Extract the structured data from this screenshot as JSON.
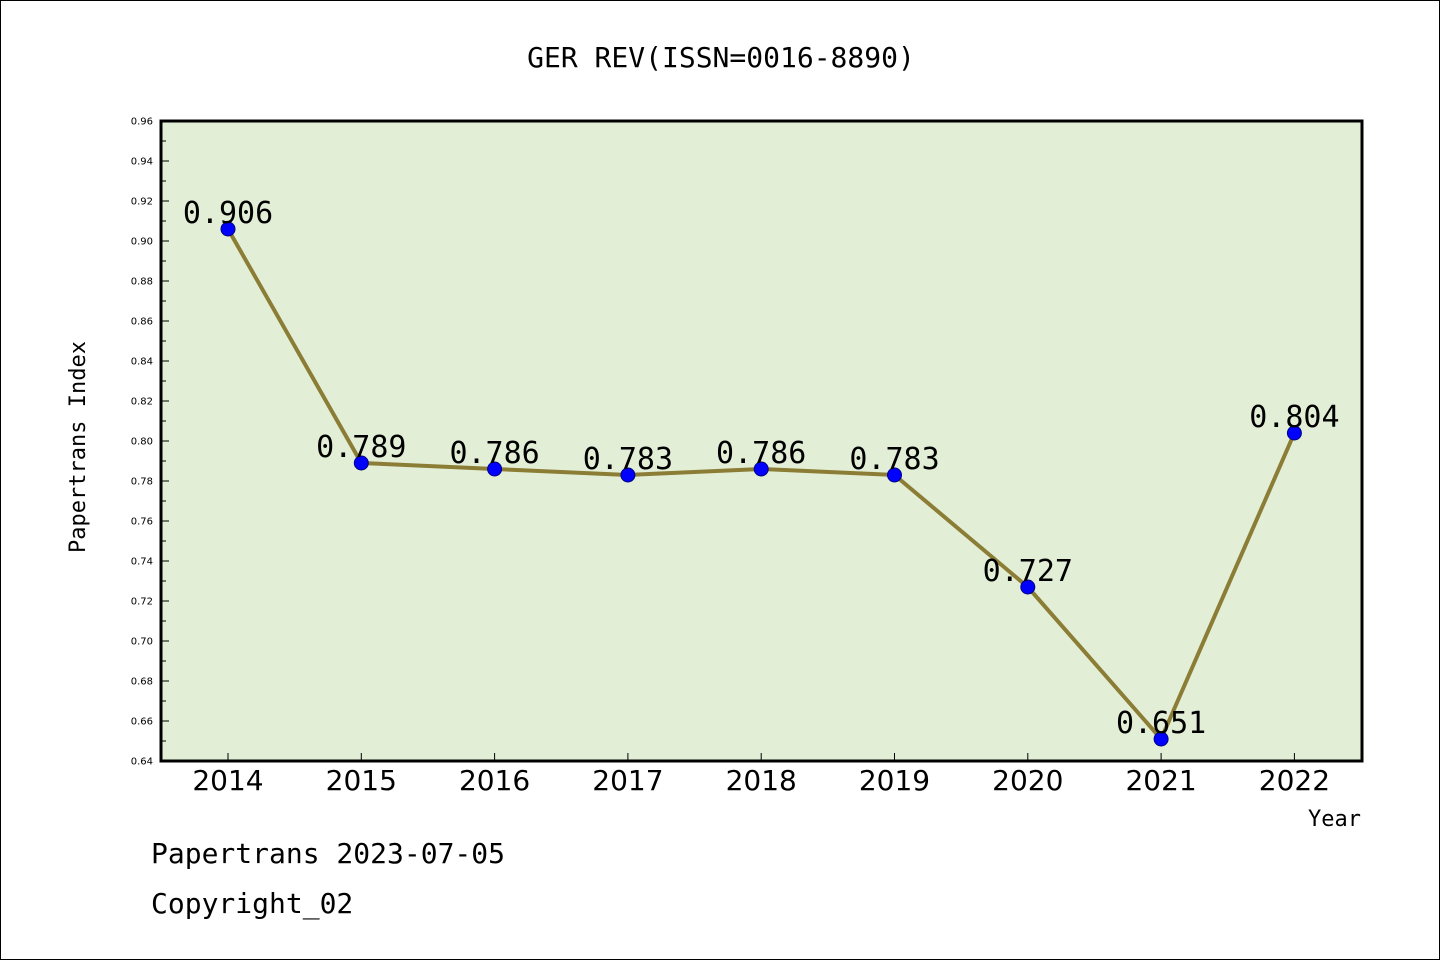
{
  "chart_data": {
    "type": "line",
    "title": "GER REV(ISSN=0016-8890)",
    "xlabel": "Year",
    "ylabel": "Papertrans Index",
    "categories": [
      "2014",
      "2015",
      "2016",
      "2017",
      "2018",
      "2019",
      "2020",
      "2021",
      "2022"
    ],
    "series": [
      {
        "values": [
          0.906,
          0.789,
          0.786,
          0.783,
          0.786,
          0.783,
          0.727,
          0.651,
          0.804
        ],
        "data_labels": [
          "0.906",
          "0.789",
          "0.786",
          "0.783",
          "0.786",
          "0.783",
          "0.727",
          "0.651",
          "0.804"
        ]
      }
    ],
    "ylim": [
      0.64,
      0.96
    ],
    "yticks": [
      "0.64",
      "0.66",
      "0.68",
      "0.70",
      "0.72",
      "0.74",
      "0.76",
      "0.78",
      "0.80",
      "0.82",
      "0.84",
      "0.86",
      "0.88",
      "0.90",
      "0.92",
      "0.94",
      "0.96"
    ],
    "grid": false,
    "legend": "none",
    "colors": {
      "plot_background": "#e2efd6",
      "line": "#8b7d35",
      "marker": "#0000ff",
      "axes": "#000000"
    }
  },
  "footer": {
    "line1": "Papertrans 2023-07-05",
    "line2": "Copyright_02"
  }
}
